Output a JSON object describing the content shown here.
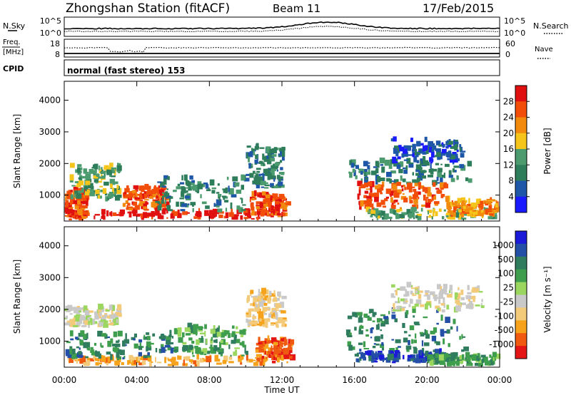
{
  "header": {
    "station": "Zhongshan Station (fitACF)",
    "beam": "Beam 11",
    "date": "17/Feb/2015"
  },
  "panels": {
    "sky": {
      "left_label": "N.Sky",
      "left_ticks": [
        "10^5",
        "10^0"
      ],
      "right_ticks": [
        "10^5",
        "10^0"
      ],
      "right_label": "N.Search"
    },
    "freq": {
      "left_label_line1": "Freq.",
      "left_label_line2": "[MHz]",
      "left_ticks": [
        "18",
        "8"
      ],
      "right_ticks": [
        "60",
        "0"
      ],
      "right_label": "Nave"
    },
    "cpid": {
      "label": "CPID",
      "mode": "normal (fast stereo) 153"
    }
  },
  "colors": {
    "power": [
      "#1a1aff",
      "#1f57a8",
      "#2e7d5a",
      "#4b9b6e",
      "#f5c51b",
      "#f28a0e",
      "#f24e0a",
      "#e11010"
    ],
    "velocity": [
      "#e51616",
      "#f05a10",
      "#f6a21a",
      "#f3ca7a",
      "#c9c9c9",
      "#9bd65e",
      "#3f9e4d",
      "#2f7c5e",
      "#244fa6",
      "#1a1ad8"
    ]
  },
  "chart_data": [
    {
      "type": "heatmap",
      "name": "power",
      "ylabel": "Slant Range [km]",
      "yticks": [
        1000,
        2000,
        3000,
        4000
      ],
      "ylim": [
        180,
        4600
      ],
      "colorbar_label": "Power [dB]",
      "colorbar_ticks": [
        4,
        8,
        12,
        16,
        20,
        24,
        28
      ],
      "colorbar_range": [
        0,
        32
      ],
      "xticks": [
        "00:00",
        "04:00",
        "08:00",
        "12:00",
        "16:00",
        "20:00",
        "00:00"
      ],
      "xlim_hours": [
        0,
        24
      ],
      "regions": [
        {
          "t0": 0.2,
          "t1": 11.5,
          "r0": 200,
          "r1": 420,
          "level": 7
        },
        {
          "t0": 0.0,
          "t1": 1.2,
          "r0": 250,
          "r1": 1100,
          "level": 6
        },
        {
          "t0": 0.3,
          "t1": 3.0,
          "r0": 800,
          "r1": 1900,
          "level": 3
        },
        {
          "t0": 3.2,
          "t1": 5.6,
          "r0": 500,
          "r1": 1200,
          "level": 6
        },
        {
          "t0": 5.0,
          "t1": 10.0,
          "r0": 450,
          "r1": 1500,
          "level": 2
        },
        {
          "t0": 10.2,
          "t1": 12.2,
          "r0": 300,
          "r1": 1000,
          "level": 6
        },
        {
          "t0": 10.0,
          "t1": 12.0,
          "r0": 1200,
          "r1": 2500,
          "level": 2
        },
        {
          "t0": 15.6,
          "t1": 22.3,
          "r0": 1300,
          "r1": 2000,
          "level": 2
        },
        {
          "t0": 16.0,
          "t1": 21.0,
          "r0": 500,
          "r1": 1300,
          "level": 6
        },
        {
          "t0": 16.5,
          "t1": 23.8,
          "r0": 200,
          "r1": 500,
          "level": 3
        },
        {
          "t0": 18.0,
          "t1": 22.0,
          "r0": 2000,
          "r1": 2700,
          "level": 1
        },
        {
          "t0": 21.0,
          "t1": 23.8,
          "r0": 300,
          "r1": 800,
          "level": 5
        }
      ]
    },
    {
      "type": "heatmap",
      "name": "velocity",
      "ylabel": "Slant Range [km]",
      "yticks": [
        1000,
        2000,
        3000,
        4000
      ],
      "ylim": [
        180,
        4600
      ],
      "colorbar_label": "Velocity [m s⁻¹]",
      "colorbar_ticks": [
        "1000",
        "500",
        "100",
        "25",
        "-25",
        "-100",
        "-500",
        "-1000"
      ],
      "colorbar_range": [
        -1200,
        1200
      ],
      "xlabel": "Time UT",
      "xticks": [
        "00:00",
        "04:00",
        "08:00",
        "12:00",
        "16:00",
        "20:00",
        "00:00"
      ],
      "xlim_hours": [
        0,
        24
      ],
      "regions": [
        {
          "t0": 0.2,
          "t1": 11.0,
          "r0": 200,
          "r1": 420,
          "level": 2
        },
        {
          "t0": 0.0,
          "t1": 6.0,
          "r0": 400,
          "r1": 1200,
          "level": 7
        },
        {
          "t0": 0.0,
          "t1": 3.0,
          "r0": 1400,
          "r1": 2000,
          "level": 4
        },
        {
          "t0": 6.0,
          "t1": 10.0,
          "r0": 500,
          "r1": 1400,
          "level": 6
        },
        {
          "t0": 10.5,
          "t1": 12.5,
          "r0": 300,
          "r1": 1000,
          "level": 1
        },
        {
          "t0": 10.0,
          "t1": 12.0,
          "r0": 1400,
          "r1": 2500,
          "level": 3
        },
        {
          "t0": 15.5,
          "t1": 22.0,
          "r0": 600,
          "r1": 1900,
          "level": 7
        },
        {
          "t0": 16.0,
          "t1": 21.0,
          "r0": 300,
          "r1": 600,
          "level": 8
        },
        {
          "t0": 18.0,
          "t1": 23.0,
          "r0": 1900,
          "r1": 2700,
          "level": 4
        },
        {
          "t0": 20.0,
          "t1": 23.8,
          "r0": 200,
          "r1": 500,
          "level": 6
        }
      ]
    }
  ]
}
